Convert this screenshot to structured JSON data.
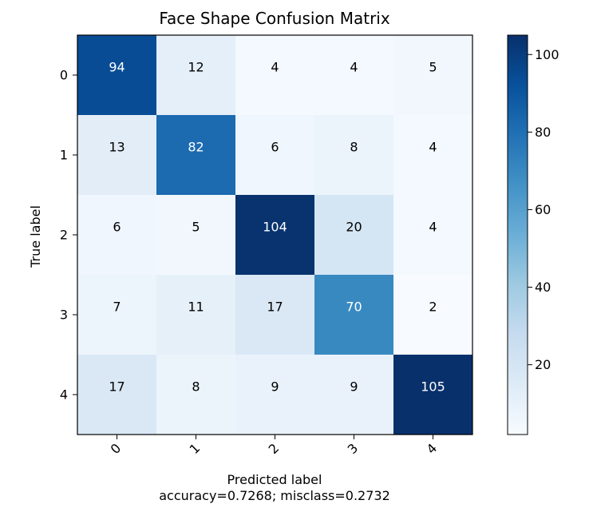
{
  "chart_data": {
    "type": "heatmap",
    "title": "Face Shape Confusion Matrix",
    "xlabel": "Predicted label",
    "ylabel": "True label",
    "footer": "accuracy=0.7268; misclass=0.2732",
    "x_categories": [
      "0",
      "1",
      "2",
      "3",
      "4"
    ],
    "y_categories": [
      "0",
      "1",
      "2",
      "3",
      "4"
    ],
    "matrix": [
      [
        94,
        12,
        4,
        4,
        5
      ],
      [
        13,
        82,
        6,
        8,
        4
      ],
      [
        6,
        5,
        104,
        20,
        4
      ],
      [
        7,
        11,
        17,
        70,
        2
      ],
      [
        17,
        8,
        9,
        9,
        105
      ]
    ],
    "colormap": "Blues",
    "colorbar": {
      "min": 2,
      "max": 105,
      "ticks": [
        20,
        40,
        60,
        80,
        100
      ],
      "tick_labels": [
        "20",
        "40",
        "60",
        "80",
        "100"
      ]
    },
    "grid": false
  }
}
